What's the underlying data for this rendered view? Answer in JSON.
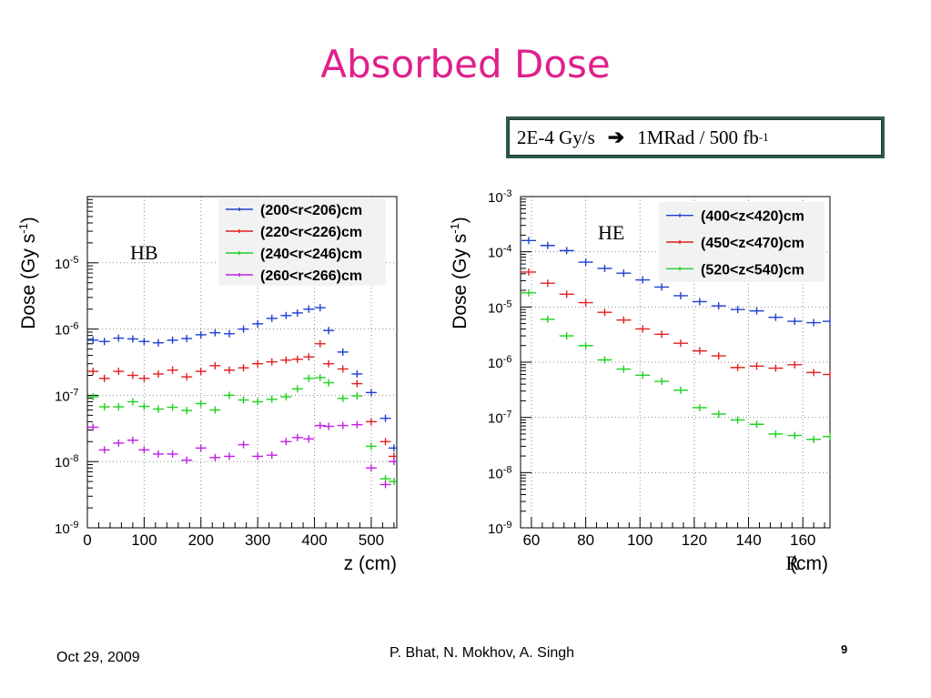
{
  "slide": {
    "title": "Absorbed Dose",
    "note": {
      "prefix": "2E-4 Gy/s",
      "arrow_icon": "right-arrow-icon",
      "text": "1MRad / 500 fb",
      "sup": "-1"
    }
  },
  "footer": {
    "date": "Oct 29, 2009",
    "authors": "P. Bhat,  N. Mokhov, A. Singh",
    "page": "9"
  },
  "colors": {
    "title": "#e0208c",
    "blue": "#1f3fd0",
    "red": "#e02020",
    "green": "#1fd01f",
    "magenta": "#c020e0"
  },
  "chart_data": [
    {
      "type": "scatter",
      "label": "HB",
      "ylabel": "Dose (Gy s",
      "ylabel_sup": "-1",
      "ylabel_close": ")",
      "xlabel": "z (cm)",
      "x_ticks": [
        0,
        100,
        200,
        300,
        400,
        500
      ],
      "y_ticks": [
        "10-9",
        "10-8",
        "10-7",
        "10-6",
        "10-5"
      ],
      "xlim": [
        0,
        545
      ],
      "ylim": [
        1e-09,
        0.0001
      ],
      "y_scale": "log",
      "legend_position": "top-right",
      "series": [
        {
          "name": "(200<r<206)cm",
          "color": "#1f3fd0",
          "x": [
            10,
            30,
            55,
            80,
            100,
            125,
            150,
            175,
            200,
            225,
            250,
            275,
            300,
            325,
            350,
            370,
            390,
            410,
            425,
            450,
            475,
            500,
            525,
            540
          ],
          "y": [
            6.8e-07,
            6.5e-07,
            7.3e-07,
            7.1e-07,
            6.5e-07,
            6.2e-07,
            6.8e-07,
            7.2e-07,
            8.2e-07,
            8.8e-07,
            8.5e-07,
            1e-06,
            1.2e-06,
            1.45e-06,
            1.6e-06,
            1.75e-06,
            2e-06,
            2.1e-06,
            9.5e-07,
            4.5e-07,
            2.1e-07,
            1.1e-07,
            4.5e-08,
            1.6e-08
          ]
        },
        {
          "name": "(220<r<226)cm",
          "color": "#e02020",
          "x": [
            10,
            30,
            55,
            80,
            100,
            125,
            150,
            175,
            200,
            225,
            250,
            275,
            300,
            325,
            350,
            370,
            390,
            410,
            425,
            450,
            475,
            500,
            525,
            540
          ],
          "y": [
            2.3e-07,
            1.8e-07,
            2.3e-07,
            2e-07,
            1.8e-07,
            2.1e-07,
            2.4e-07,
            1.9e-07,
            2.3e-07,
            2.8e-07,
            2.4e-07,
            2.6e-07,
            3e-07,
            3.2e-07,
            3.4e-07,
            3.5e-07,
            3.8e-07,
            6e-07,
            3e-07,
            2.5e-07,
            1.5e-07,
            4e-08,
            2e-08,
            1.2e-08
          ]
        },
        {
          "name": "(240<r<246)cm",
          "color": "#1fd01f",
          "x": [
            10,
            30,
            55,
            80,
            100,
            125,
            150,
            175,
            200,
            225,
            250,
            275,
            300,
            325,
            350,
            370,
            390,
            410,
            425,
            450,
            475,
            500,
            525,
            540
          ],
          "y": [
            9.5e-08,
            6.7e-08,
            6.7e-08,
            8e-08,
            6.8e-08,
            6.2e-08,
            6.6e-08,
            5.9e-08,
            7.5e-08,
            6e-08,
            1e-07,
            8.5e-08,
            8e-08,
            8.7e-08,
            9.5e-08,
            1.25e-07,
            1.8e-07,
            1.85e-07,
            1.55e-07,
            9e-08,
            9.8e-08,
            1.7e-08,
            5.5e-09,
            5e-09
          ]
        },
        {
          "name": "(260<r<266)cm",
          "color": "#c020e0",
          "x": [
            10,
            30,
            55,
            80,
            100,
            125,
            150,
            175,
            200,
            225,
            250,
            275,
            300,
            325,
            350,
            370,
            390,
            410,
            425,
            450,
            475,
            500,
            525,
            540
          ],
          "y": [
            3.3e-08,
            1.5e-08,
            1.9e-08,
            2.1e-08,
            1.5e-08,
            1.3e-08,
            1.3e-08,
            1.05e-08,
            1.6e-08,
            1.15e-08,
            1.2e-08,
            1.8e-08,
            1.2e-08,
            1.25e-08,
            2e-08,
            2.3e-08,
            2.2e-08,
            3.5e-08,
            3.4e-08,
            3.5e-08,
            3.6e-08,
            8e-09,
            4.5e-09,
            1e-08
          ]
        }
      ]
    },
    {
      "type": "scatter",
      "label": "HE",
      "ylabel": "Dose (Gy s",
      "ylabel_sup": "-1",
      "ylabel_close": ")",
      "xlabel_r": "R",
      "xlabel": "(cm)",
      "x_ticks": [
        60,
        80,
        100,
        120,
        140,
        160
      ],
      "y_ticks": [
        "10-9",
        "10-8",
        "10-7",
        "10-6",
        "10-5",
        "10-4",
        "10-3"
      ],
      "xlim": [
        56,
        170
      ],
      "ylim": [
        1e-09,
        0.001
      ],
      "y_scale": "log",
      "legend_position": "top-right",
      "series": [
        {
          "name": "(400<z<420)cm",
          "color": "#1f3fd0",
          "x": [
            59,
            66,
            73,
            80,
            87,
            94,
            101,
            108,
            115,
            122,
            129,
            136,
            143,
            150,
            157,
            164,
            170
          ],
          "y": [
            0.00016,
            0.00013,
            0.000105,
            6.5e-05,
            5e-05,
            4.1e-05,
            3.1e-05,
            2.3e-05,
            1.6e-05,
            1.25e-05,
            1.05e-05,
            9e-06,
            8.5e-06,
            6.5e-06,
            5.5e-06,
            5.2e-06,
            5.5e-06
          ]
        },
        {
          "name": "(450<z<470)cm",
          "color": "#e02020",
          "x": [
            59,
            66,
            73,
            80,
            87,
            94,
            101,
            108,
            115,
            122,
            129,
            136,
            143,
            150,
            157,
            164,
            170
          ],
          "y": [
            4.3e-05,
            2.7e-05,
            1.7e-05,
            1.2e-05,
            8e-06,
            5.8e-06,
            4e-06,
            3.2e-06,
            2.2e-06,
            1.6e-06,
            1.3e-06,
            8e-07,
            8.5e-07,
            7.8e-07,
            9e-07,
            6.5e-07,
            6e-07
          ]
        },
        {
          "name": "(520<z<540)cm",
          "color": "#1fd01f",
          "x": [
            59,
            66,
            73,
            80,
            87,
            94,
            101,
            108,
            115,
            122,
            129,
            136,
            143,
            150,
            157,
            164,
            170
          ],
          "y": [
            1.8e-05,
            6e-06,
            3e-06,
            2e-06,
            1.1e-06,
            7.5e-07,
            5.8e-07,
            4.5e-07,
            3.1e-07,
            1.5e-07,
            1.15e-07,
            9e-08,
            7.5e-08,
            5e-08,
            4.7e-08,
            4e-08,
            4.5e-08
          ]
        }
      ]
    }
  ]
}
